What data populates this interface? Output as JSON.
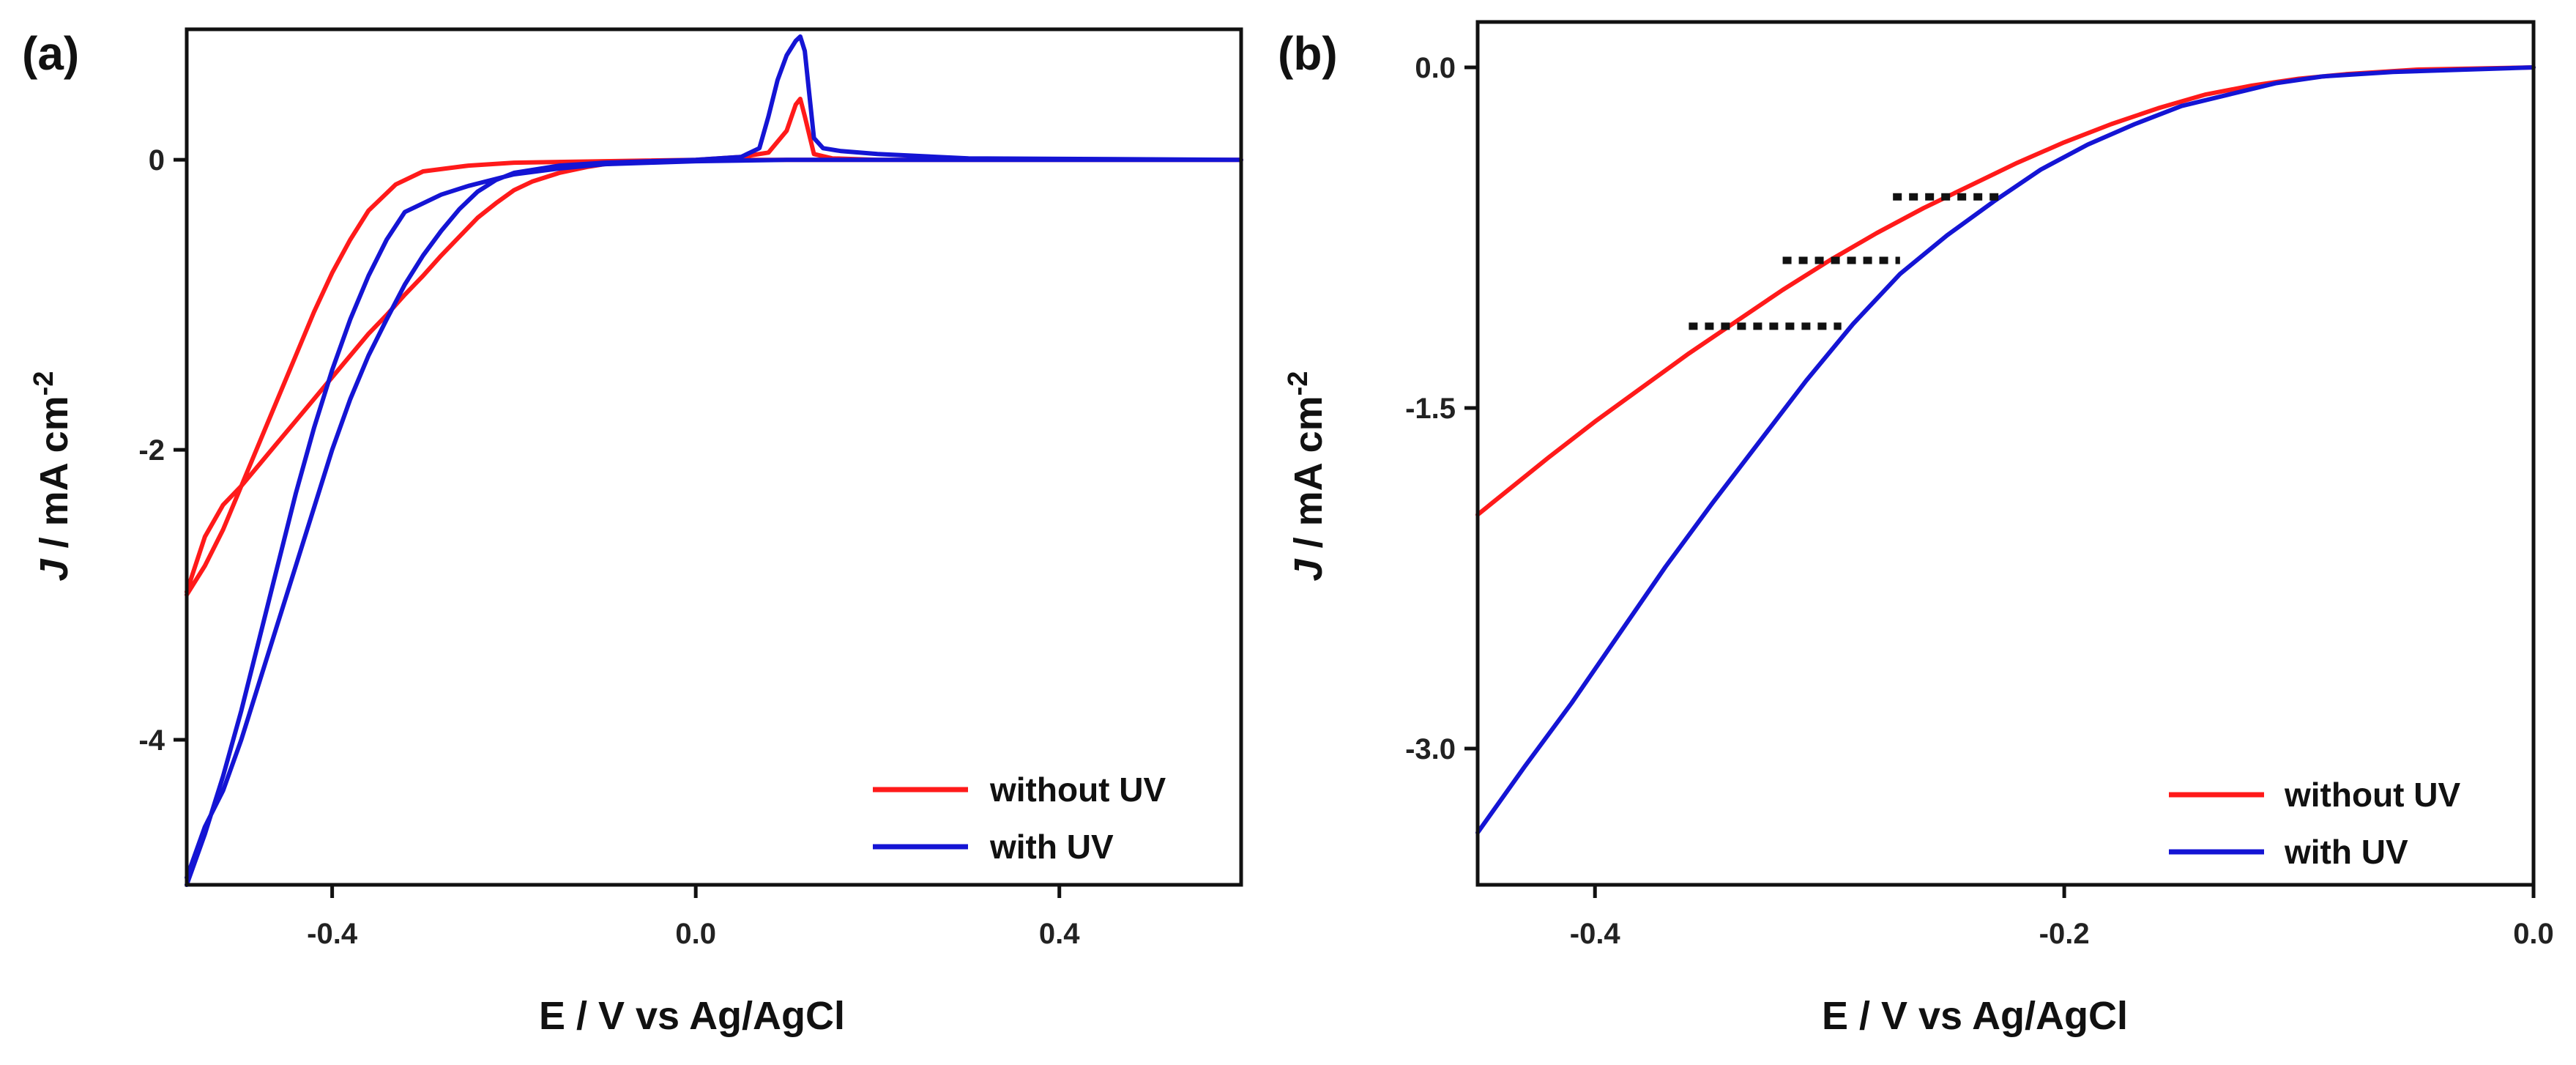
{
  "chart_data": [
    {
      "panel": "(a)",
      "type": "line",
      "xlabel": "E / V vs Ag/AgCl",
      "ylabel_italic": "J",
      "ylabel_rest": " / mA cm",
      "ylabel_sup": "-2",
      "xlim": [
        -0.56,
        0.6
      ],
      "ylim": [
        -5.0,
        0.9
      ],
      "xticks": [
        -0.4,
        0.0,
        0.4
      ],
      "xtick_labels": [
        "-0.4",
        "0.0",
        "0.4"
      ],
      "yticks": [
        0,
        -2,
        -4
      ],
      "ytick_labels": [
        "0",
        "-2",
        "-4"
      ],
      "legend": {
        "position": "bottom-right",
        "entries": [
          "without UV",
          "with UV"
        ]
      },
      "series": [
        {
          "name": "without UV",
          "color": "#ff1a1a",
          "points": [
            [
              -0.56,
              -2.98
            ],
            [
              -0.54,
              -2.6
            ],
            [
              -0.52,
              -2.38
            ],
            [
              -0.5,
              -2.25
            ],
            [
              -0.48,
              -2.1
            ],
            [
              -0.46,
              -1.95
            ],
            [
              -0.44,
              -1.8
            ],
            [
              -0.42,
              -1.65
            ],
            [
              -0.4,
              -1.5
            ],
            [
              -0.38,
              -1.35
            ],
            [
              -0.36,
              -1.2
            ],
            [
              -0.34,
              -1.07
            ],
            [
              -0.32,
              -0.93
            ],
            [
              -0.3,
              -0.8
            ],
            [
              -0.28,
              -0.66
            ],
            [
              -0.26,
              -0.53
            ],
            [
              -0.24,
              -0.4
            ],
            [
              -0.22,
              -0.3
            ],
            [
              -0.2,
              -0.21
            ],
            [
              -0.18,
              -0.15
            ],
            [
              -0.15,
              -0.09
            ],
            [
              -0.12,
              -0.05
            ],
            [
              -0.1,
              -0.03
            ],
            [
              -0.05,
              -0.01
            ],
            [
              0.0,
              0.0
            ],
            [
              0.05,
              0.02
            ],
            [
              0.08,
              0.05
            ],
            [
              0.1,
              0.2
            ],
            [
              0.11,
              0.38
            ],
            [
              0.115,
              0.42
            ],
            [
              0.12,
              0.3
            ],
            [
              0.13,
              0.04
            ],
            [
              0.15,
              0.01
            ],
            [
              0.2,
              0.0
            ],
            [
              0.3,
              0.0
            ],
            [
              0.6,
              0.0
            ],
            [
              0.3,
              0.0
            ],
            [
              0.1,
              0.0
            ],
            [
              0.0,
              0.0
            ],
            [
              -0.1,
              -0.01
            ],
            [
              -0.2,
              -0.02
            ],
            [
              -0.25,
              -0.04
            ],
            [
              -0.3,
              -0.08
            ],
            [
              -0.33,
              -0.17
            ],
            [
              -0.36,
              -0.35
            ],
            [
              -0.38,
              -0.55
            ],
            [
              -0.4,
              -0.78
            ],
            [
              -0.42,
              -1.05
            ],
            [
              -0.44,
              -1.35
            ],
            [
              -0.46,
              -1.65
            ],
            [
              -0.48,
              -1.95
            ],
            [
              -0.5,
              -2.25
            ],
            [
              -0.52,
              -2.55
            ],
            [
              -0.54,
              -2.8
            ],
            [
              -0.56,
              -3.0
            ]
          ]
        },
        {
          "name": "with UV",
          "color": "#1414d4",
          "points": [
            [
              -0.56,
              -4.95
            ],
            [
              -0.54,
              -4.6
            ],
            [
              -0.52,
              -4.35
            ],
            [
              -0.5,
              -4.0
            ],
            [
              -0.48,
              -3.6
            ],
            [
              -0.46,
              -3.2
            ],
            [
              -0.44,
              -2.8
            ],
            [
              -0.42,
              -2.4
            ],
            [
              -0.4,
              -2.0
            ],
            [
              -0.38,
              -1.65
            ],
            [
              -0.36,
              -1.35
            ],
            [
              -0.34,
              -1.1
            ],
            [
              -0.32,
              -0.86
            ],
            [
              -0.3,
              -0.66
            ],
            [
              -0.28,
              -0.49
            ],
            [
              -0.26,
              -0.34
            ],
            [
              -0.24,
              -0.22
            ],
            [
              -0.22,
              -0.14
            ],
            [
              -0.2,
              -0.09
            ],
            [
              -0.15,
              -0.04
            ],
            [
              -0.1,
              -0.02
            ],
            [
              -0.05,
              -0.01
            ],
            [
              0.0,
              0.0
            ],
            [
              0.05,
              0.02
            ],
            [
              0.07,
              0.08
            ],
            [
              0.08,
              0.3
            ],
            [
              0.09,
              0.55
            ],
            [
              0.1,
              0.72
            ],
            [
              0.11,
              0.82
            ],
            [
              0.115,
              0.85
            ],
            [
              0.12,
              0.75
            ],
            [
              0.125,
              0.45
            ],
            [
              0.13,
              0.15
            ],
            [
              0.14,
              0.08
            ],
            [
              0.16,
              0.06
            ],
            [
              0.2,
              0.04
            ],
            [
              0.3,
              0.01
            ],
            [
              0.6,
              0.0
            ],
            [
              0.3,
              0.0
            ],
            [
              0.1,
              0.0
            ],
            [
              0.0,
              -0.01
            ],
            [
              -0.05,
              -0.02
            ],
            [
              -0.1,
              -0.03
            ],
            [
              -0.15,
              -0.06
            ],
            [
              -0.2,
              -0.1
            ],
            [
              -0.25,
              -0.18
            ],
            [
              -0.28,
              -0.24
            ],
            [
              -0.3,
              -0.3
            ],
            [
              -0.32,
              -0.36
            ],
            [
              -0.34,
              -0.55
            ],
            [
              -0.36,
              -0.8
            ],
            [
              -0.38,
              -1.1
            ],
            [
              -0.4,
              -1.45
            ],
            [
              -0.42,
              -1.85
            ],
            [
              -0.44,
              -2.3
            ],
            [
              -0.46,
              -2.8
            ],
            [
              -0.48,
              -3.3
            ],
            [
              -0.5,
              -3.8
            ],
            [
              -0.52,
              -4.25
            ],
            [
              -0.54,
              -4.65
            ],
            [
              -0.56,
              -5.0
            ]
          ]
        }
      ]
    },
    {
      "panel": "(b)",
      "type": "line",
      "xlabel": "E / V vs Ag/AgCl",
      "ylabel_italic": "J",
      "ylabel_rest": " / mA cm",
      "ylabel_sup": "-2",
      "xlim": [
        -0.45,
        0.0
      ],
      "ylim": [
        -3.6,
        0.2
      ],
      "xticks": [
        -0.4,
        -0.2,
        0.0
      ],
      "xtick_labels": [
        "-0.4",
        "-0.2",
        "0.0"
      ],
      "yticks": [
        0.0,
        -1.5,
        -3.0
      ],
      "ytick_labels": [
        "0.0",
        "-1.5",
        "-3.0"
      ],
      "legend": {
        "position": "bottom-right",
        "entries": [
          "without UV",
          "with UV"
        ]
      },
      "series": [
        {
          "name": "without UV",
          "color": "#ff1a1a",
          "points": [
            [
              -0.45,
              -1.97
            ],
            [
              -0.42,
              -1.72
            ],
            [
              -0.4,
              -1.56
            ],
            [
              -0.38,
              -1.41
            ],
            [
              -0.36,
              -1.26
            ],
            [
              -0.34,
              -1.12
            ],
            [
              -0.32,
              -0.98
            ],
            [
              -0.3,
              -0.85
            ],
            [
              -0.28,
              -0.73
            ],
            [
              -0.26,
              -0.62
            ],
            [
              -0.24,
              -0.52
            ],
            [
              -0.22,
              -0.42
            ],
            [
              -0.2,
              -0.33
            ],
            [
              -0.18,
              -0.25
            ],
            [
              -0.16,
              -0.18
            ],
            [
              -0.14,
              -0.12
            ],
            [
              -0.12,
              -0.08
            ],
            [
              -0.1,
              -0.05
            ],
            [
              -0.08,
              -0.03
            ],
            [
              -0.05,
              -0.01
            ],
            [
              0.0,
              0.0
            ]
          ]
        },
        {
          "name": "with UV",
          "color": "#1414d4",
          "points": [
            [
              -0.45,
              -3.37
            ],
            [
              -0.43,
              -3.08
            ],
            [
              -0.41,
              -2.8
            ],
            [
              -0.39,
              -2.5
            ],
            [
              -0.37,
              -2.2
            ],
            [
              -0.35,
              -1.92
            ],
            [
              -0.33,
              -1.65
            ],
            [
              -0.31,
              -1.38
            ],
            [
              -0.29,
              -1.13
            ],
            [
              -0.27,
              -0.91
            ],
            [
              -0.25,
              -0.74
            ],
            [
              -0.23,
              -0.59
            ],
            [
              -0.21,
              -0.45
            ],
            [
              -0.19,
              -0.34
            ],
            [
              -0.17,
              -0.25
            ],
            [
              -0.15,
              -0.17
            ],
            [
              -0.13,
              -0.12
            ],
            [
              -0.11,
              -0.07
            ],
            [
              -0.09,
              -0.04
            ],
            [
              -0.06,
              -0.02
            ],
            [
              -0.03,
              -0.01
            ],
            [
              0.0,
              0.0
            ]
          ]
        }
      ],
      "reference_lines": [
        {
          "x": [
            -0.36,
            -0.295
          ],
          "y": -1.14
        },
        {
          "x": [
            -0.32,
            -0.27
          ],
          "y": -0.85
        },
        {
          "x": [
            -0.273,
            -0.228
          ],
          "y": -0.57
        }
      ]
    }
  ]
}
